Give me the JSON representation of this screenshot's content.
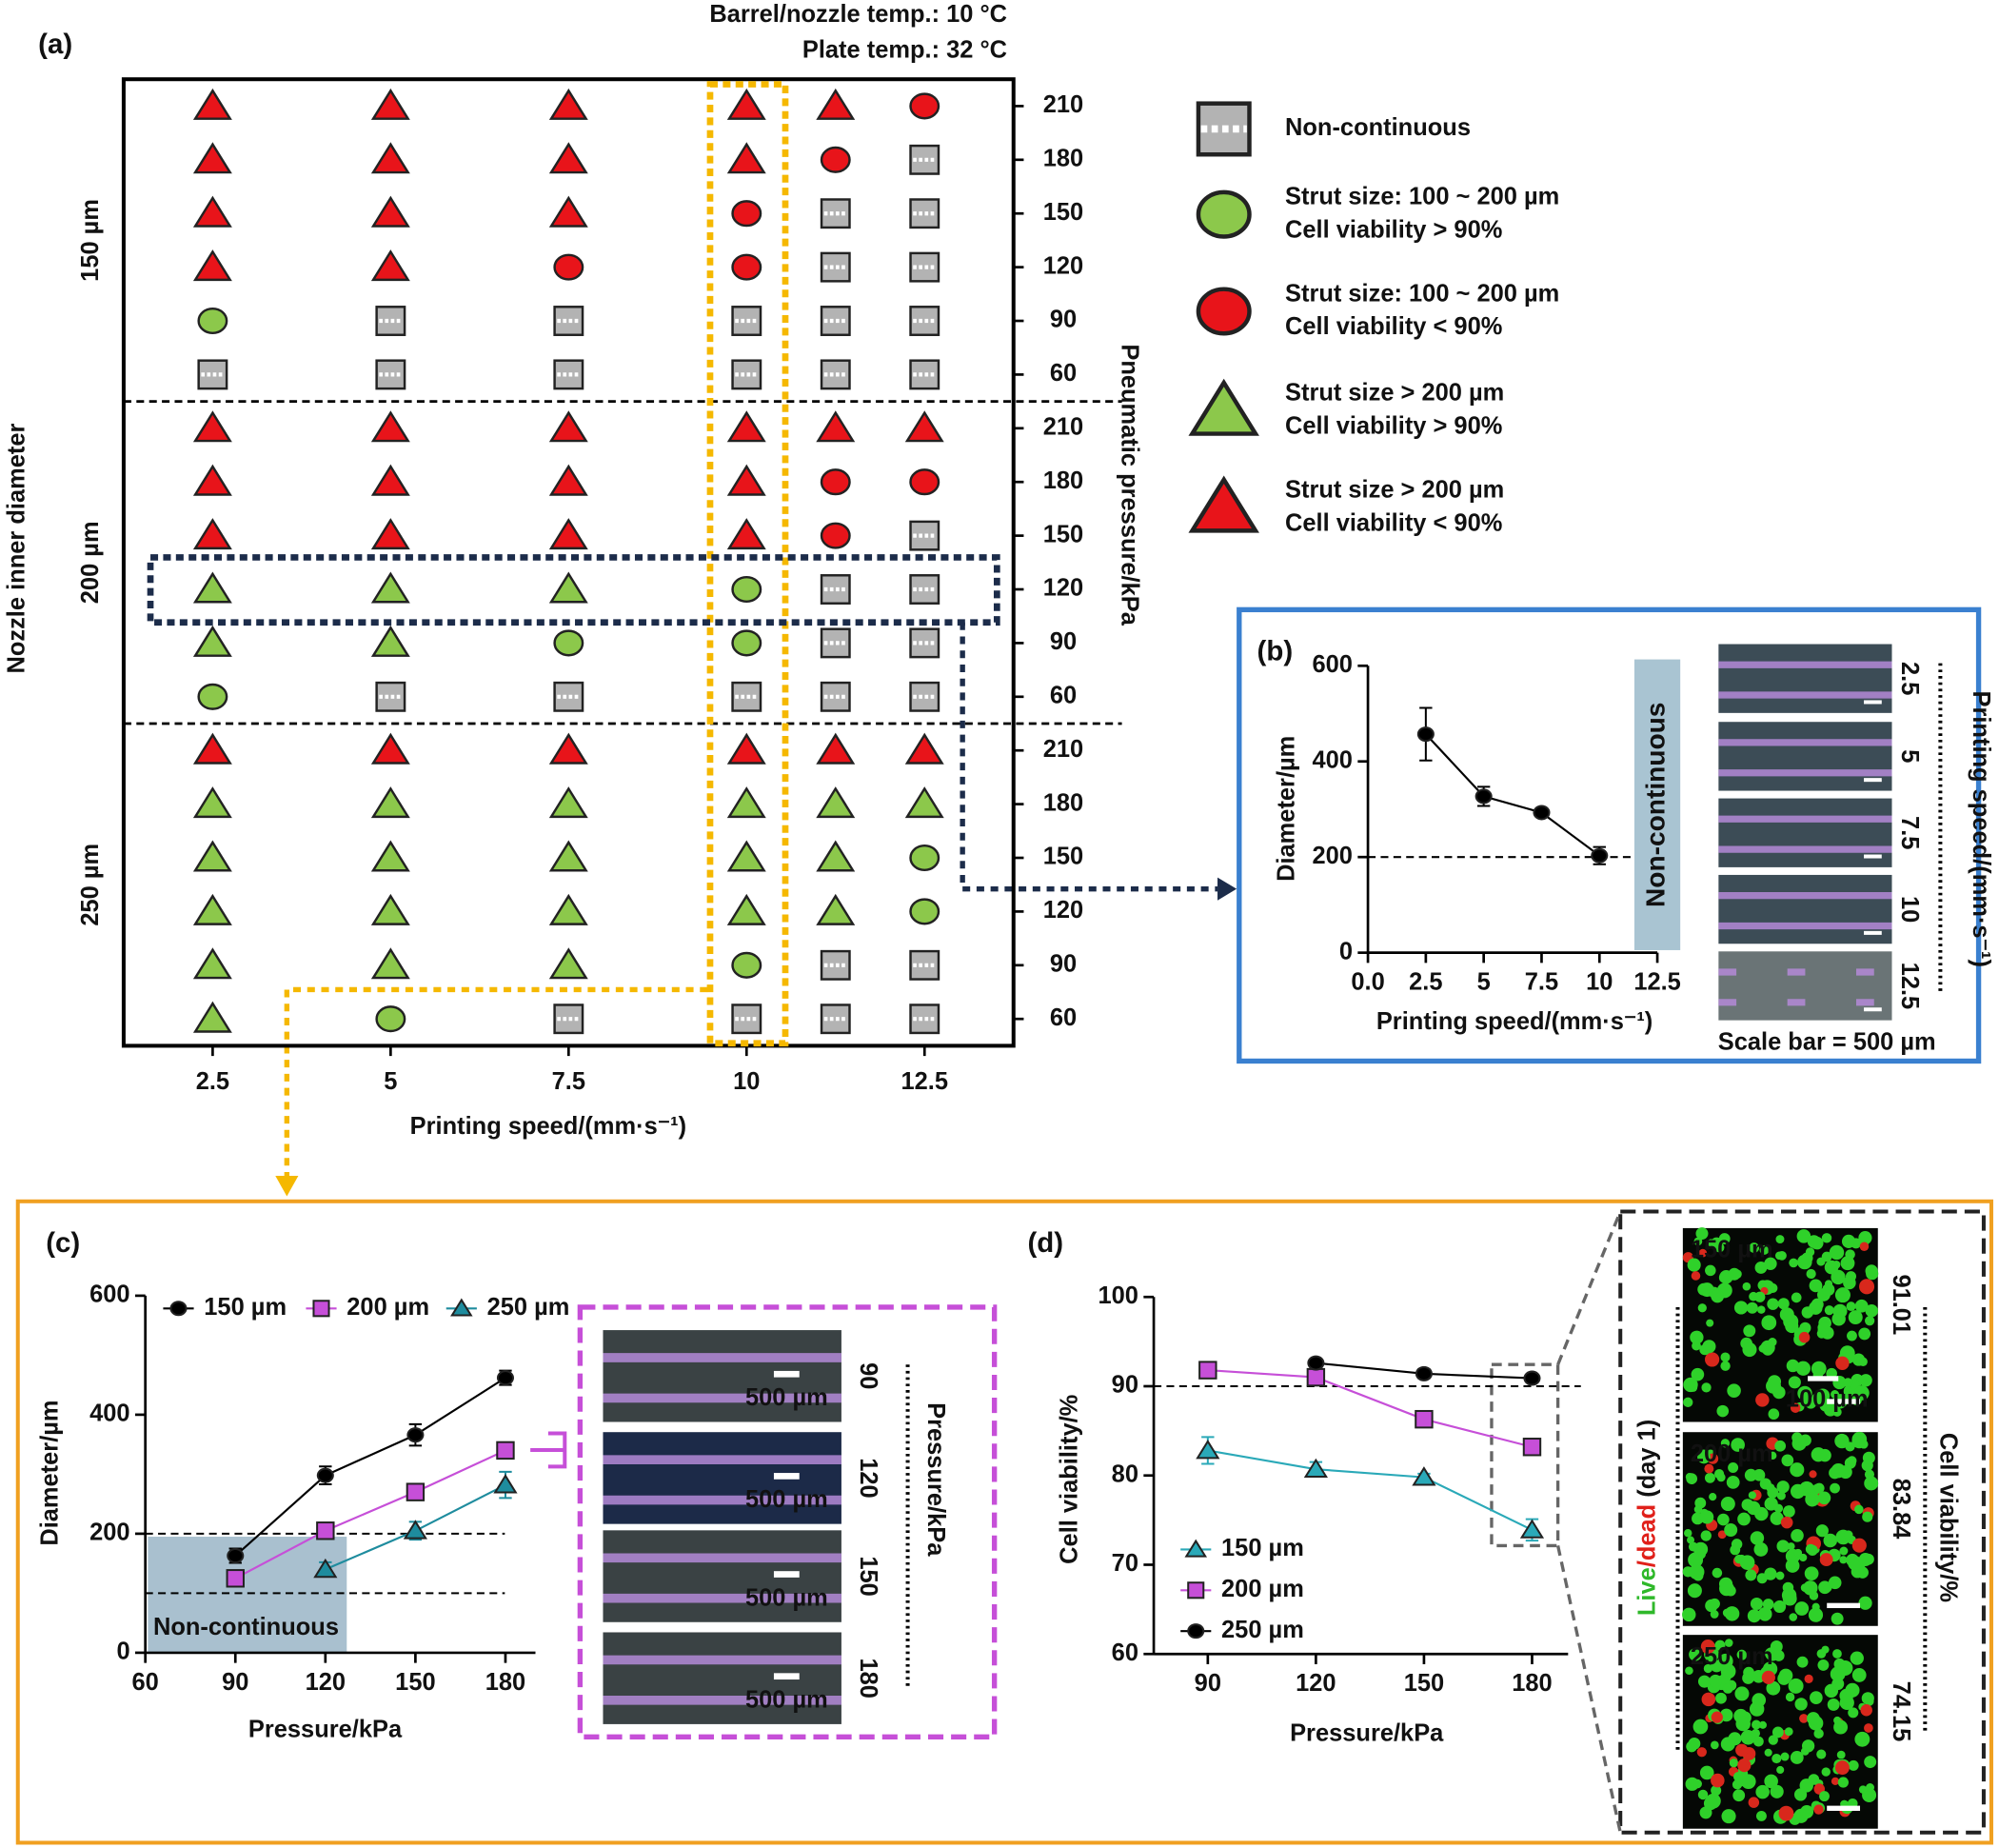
{
  "chart_data": [
    {
      "type": "matrix",
      "label": "(a)",
      "notes": [
        "Barrel/nozzle temp.: 10 °C",
        "Plate temp.: 32 °C"
      ],
      "xlabel": "Printing speed/(mm·s⁻¹)",
      "ylabel": "Nozzle inner diameter",
      "y2label": "Pneumatic pressure/kPa",
      "x": [
        2.5,
        5,
        7.5,
        10,
        11.25,
        12.5
      ],
      "xlim": [
        1.25,
        13.75
      ],
      "xticks": [
        2.5,
        5,
        7.5,
        10,
        12.5
      ],
      "pressures": [
        210,
        180,
        150,
        120,
        90,
        60
      ],
      "legend": [
        {
          "label": [
            "Non-continuous"
          ],
          "shape": "square",
          "color": "#b3b3b3"
        },
        {
          "label": [
            "Strut size: 100 ~ 200 µm",
            "Cell viability > 90%"
          ],
          "shape": "circle",
          "color": "#8cc84b"
        },
        {
          "label": [
            "Strut size: 100 ~ 200 µm",
            "Cell viability < 90%"
          ],
          "shape": "circle",
          "color": "#e8141a"
        },
        {
          "label": [
            "Strut size > 200 µm",
            "Cell viability > 90%"
          ],
          "shape": "triangle",
          "color": "#8cc84b"
        },
        {
          "label": [
            "Strut size > 200 µm",
            "Cell viability < 90%"
          ],
          "shape": "triangle",
          "color": "#e8141a"
        }
      ],
      "groups": [
        {
          "name": "150 µm",
          "values": [
            [
              4,
              4,
              4,
              4,
              4,
              2
            ],
            [
              4,
              4,
              4,
              4,
              2,
              0
            ],
            [
              4,
              4,
              4,
              2,
              0,
              0
            ],
            [
              4,
              4,
              2,
              2,
              0,
              0
            ],
            [
              1,
              0,
              0,
              0,
              0,
              0
            ],
            [
              0,
              0,
              0,
              0,
              0,
              0
            ]
          ]
        },
        {
          "name": "200 µm",
          "values": [
            [
              4,
              4,
              4,
              4,
              4,
              4
            ],
            [
              4,
              4,
              4,
              4,
              2,
              2
            ],
            [
              4,
              4,
              4,
              4,
              2,
              0
            ],
            [
              3,
              3,
              3,
              1,
              0,
              0
            ],
            [
              3,
              3,
              1,
              1,
              0,
              0
            ],
            [
              1,
              0,
              0,
              0,
              0,
              0
            ]
          ]
        },
        {
          "name": "250 µm",
          "values": [
            [
              4,
              4,
              4,
              4,
              4,
              4
            ],
            [
              3,
              3,
              3,
              3,
              3,
              3
            ],
            [
              3,
              3,
              3,
              3,
              3,
              1
            ],
            [
              3,
              3,
              3,
              3,
              3,
              1
            ],
            [
              3,
              3,
              3,
              1,
              0,
              0
            ],
            [
              3,
              1,
              0,
              0,
              0,
              0
            ]
          ]
        }
      ]
    },
    {
      "type": "line",
      "label": "(b)",
      "xlabel": "Printing speed/(mm·s⁻¹)",
      "ylabel": "Diameter/µm",
      "xlim": [
        0,
        12.5
      ],
      "xticks": [
        {
          "value": 0,
          "label": "0.0"
        },
        2.5,
        5,
        7.5,
        10,
        12.5
      ],
      "ylim": [
        0,
        600
      ],
      "yticks": [
        0,
        200,
        400,
        600
      ],
      "reference_lines": [
        200
      ],
      "region_label": "Non-continuous",
      "series": [
        {
          "color": "#000000",
          "marker": "circle",
          "x": [
            2.5,
            5,
            7.5,
            10
          ],
          "values": [
            457,
            327,
            293,
            203
          ],
          "errors": [
            55,
            20,
            8,
            18
          ]
        }
      ],
      "images": {
        "labels": [
          "2.5",
          "5",
          "7.5",
          "10",
          "12.5"
        ],
        "axis_label": "Printing speed/(mm·s⁻¹)",
        "caption": "Scale bar = 500 µm"
      }
    },
    {
      "type": "line",
      "label": "(c)",
      "xlabel": "Pressure/kPa",
      "ylabel": "Diameter/µm",
      "xlim": [
        60,
        190
      ],
      "xticks": [
        60,
        90,
        120,
        150,
        180
      ],
      "ylim": [
        0,
        600
      ],
      "yticks": [
        0,
        200,
        400,
        600
      ],
      "reference_lines": [
        200,
        100
      ],
      "region_label": "Non-continuous",
      "series": [
        {
          "name": "150 µm",
          "color": "#000000",
          "marker": "circle",
          "x": [
            90,
            120,
            150,
            180
          ],
          "values": [
            163,
            298,
            366,
            462
          ],
          "errors": [
            12,
            15,
            18,
            12
          ]
        },
        {
          "name": "200 µm",
          "color": "#c64fd8",
          "marker": "square",
          "x": [
            90,
            120,
            150,
            180
          ],
          "values": [
            125,
            205,
            270,
            340
          ],
          "errors": [
            10,
            8,
            8,
            8
          ]
        },
        {
          "name": "250 µm",
          "color": "#1e8c9e",
          "marker": "triangle",
          "x": [
            120,
            150,
            180
          ],
          "values": [
            140,
            205,
            282
          ],
          "errors": [
            12,
            15,
            22
          ]
        }
      ],
      "images": {
        "labels": [
          "90",
          "120",
          "150",
          "180"
        ],
        "scale_label": "500 µm",
        "axis_label": "Pressure/kPa"
      }
    },
    {
      "type": "line",
      "label": "(d)",
      "xlabel": "Pressure/kPa",
      "ylabel": "Cell viability/%",
      "xlim": [
        75,
        190
      ],
      "xticks": [
        90,
        120,
        150,
        180
      ],
      "ylim": [
        60,
        100
      ],
      "yticks": [
        60,
        70,
        80,
        90,
        100
      ],
      "reference_lines": [
        90
      ],
      "series": [
        {
          "name": "150 µm",
          "color": "#2aa9b8",
          "marker": "triangle",
          "x": [
            90,
            120,
            150,
            180
          ],
          "values": [
            82.8,
            80.7,
            79.8,
            73.9
          ],
          "errors": [
            1.5,
            0.8,
            0.4,
            1.2
          ]
        },
        {
          "name": "200 µm",
          "color": "#c64fd8",
          "marker": "square",
          "x": [
            90,
            120,
            150,
            180
          ],
          "values": [
            91.8,
            91.0,
            86.3,
            83.2
          ],
          "errors": [
            0.3,
            0.3,
            0.3,
            0.3
          ]
        },
        {
          "name": "250 µm",
          "color": "#000000",
          "marker": "circle",
          "x": [
            120,
            150,
            180
          ],
          "values": [
            92.6,
            91.4,
            90.9
          ],
          "errors": [
            0.4,
            0.5,
            0.4
          ]
        }
      ],
      "images": {
        "names": [
          "150 µm",
          "200 µm",
          "250 µm"
        ],
        "viability": [
          "91.01",
          "83.84",
          "74.15"
        ],
        "scale_label": "100 µm",
        "side_label": [
          "Live",
          "/dead",
          " (day 1)"
        ],
        "axis_label": "Cell viability/%"
      }
    }
  ]
}
